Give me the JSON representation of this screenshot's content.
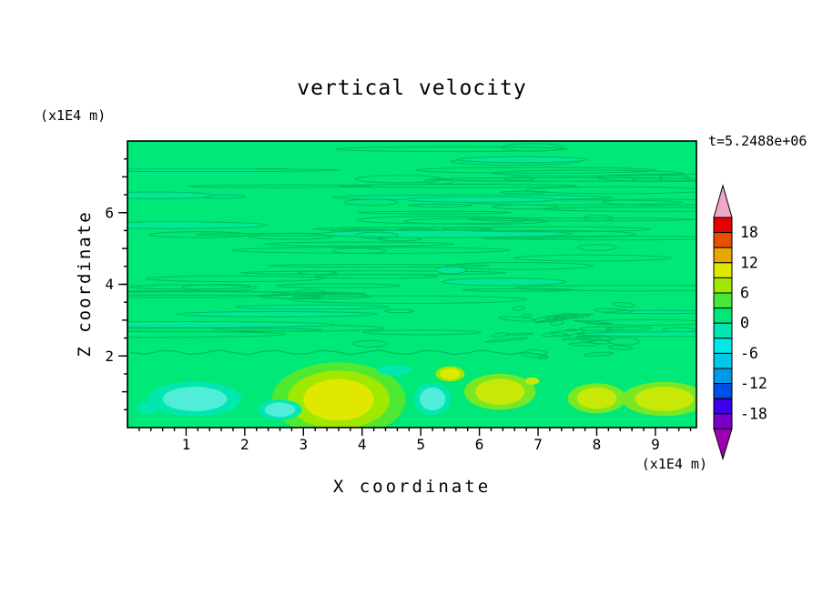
{
  "chart": {
    "title": "vertical velocity",
    "timestamp": "t=5.2488e+06",
    "x_axis": {
      "label": "X coordinate",
      "unit": "(x1E4 m)",
      "tick_labels": [
        1,
        2,
        3,
        4,
        5,
        6,
        7,
        8,
        9
      ],
      "range": [
        0,
        9.7
      ],
      "minor_step": 0.2
    },
    "y_axis": {
      "label": "Z coordinate",
      "unit": "(x1E4 m)",
      "tick_labels": [
        2,
        4,
        6
      ],
      "range": [
        0,
        8
      ],
      "minor_step": 0.5
    },
    "colorbar": {
      "labels": [
        18,
        12,
        6,
        0,
        -6,
        -12,
        -18
      ],
      "level_step": 3,
      "value_range": [
        -21,
        21
      ],
      "segment_colors_top_to_bottom": [
        "#E80000",
        "#E85000",
        "#E8A800",
        "#E0E800",
        "#A0E800",
        "#48E838",
        "#00E878",
        "#00E8B0",
        "#00E8E8",
        "#00C8E8",
        "#0098E8",
        "#0050E8",
        "#3C00E8",
        "#7800C8"
      ],
      "top_arrow_color": "#F0A8C8",
      "bottom_arrow_color": "#A000B4"
    }
  },
  "chart_data": {
    "type": "heatmap",
    "subtype": "filled_contour",
    "field": "vertical velocity",
    "value_range_shown": [
      -21,
      21
    ],
    "background_level_color": "#00E878",
    "streak_fill_color": "#00E894",
    "contour_line_color": "#00BC5C",
    "texture": {
      "seed": 7,
      "streak_count": 85,
      "zone_z": [
        2.2,
        7.85
      ],
      "ripple_cluster": {
        "x": [
          6.2,
          8.6
        ],
        "z": [
          1.95,
          3.55
        ],
        "count": 30
      },
      "boundary_z": 2.1,
      "boundary_x_extent": [
        0.05,
        6.8
      ]
    },
    "features": [
      {
        "type": "max",
        "x": 3.6,
        "z": 0.78,
        "rx": 0.6,
        "rz": 0.58,
        "core": "#E0E800",
        "ring": "#A0E800",
        "ring2": "#50E830"
      },
      {
        "type": "max",
        "x": 5.5,
        "z": 1.5,
        "rx": 0.17,
        "rz": 0.15,
        "core": "#E0E800",
        "ring": "#A0E800"
      },
      {
        "type": "max",
        "x": 6.35,
        "z": 1.0,
        "rx": 0.42,
        "rz": 0.36,
        "core": "#C8E808",
        "ring": "#78E824"
      },
      {
        "type": "max",
        "x": 6.9,
        "z": 1.3,
        "rx": 0.12,
        "rz": 0.1,
        "core": "#C8E808"
      },
      {
        "type": "max",
        "x": 8.0,
        "z": 0.82,
        "rx": 0.34,
        "rz": 0.3,
        "core": "#C8E808",
        "ring": "#78E824"
      },
      {
        "type": "max",
        "x": 9.15,
        "z": 0.8,
        "rx": 0.5,
        "rz": 0.34,
        "core": "#C8E808",
        "ring": "#78E824"
      },
      {
        "type": "min",
        "x": 1.15,
        "z": 0.8,
        "rx": 0.55,
        "rz": 0.34,
        "core": "#50EED8",
        "ring": "#00E8B0"
      },
      {
        "type": "min",
        "x": 2.6,
        "z": 0.5,
        "rx": 0.26,
        "rz": 0.2,
        "core": "#50EED8",
        "ring": "#00E8B0"
      },
      {
        "type": "min",
        "x": 5.2,
        "z": 0.8,
        "rx": 0.22,
        "rz": 0.32,
        "core": "#50EED8",
        "ring": "#00E8B0"
      },
      {
        "type": "min",
        "x": 0.35,
        "z": 0.55,
        "rx": 0.2,
        "rz": 0.16,
        "core": "#00E8B0"
      },
      {
        "type": "min",
        "x": 4.55,
        "z": 1.6,
        "rx": 0.3,
        "rz": 0.14,
        "core": "#00E8B0"
      }
    ]
  }
}
